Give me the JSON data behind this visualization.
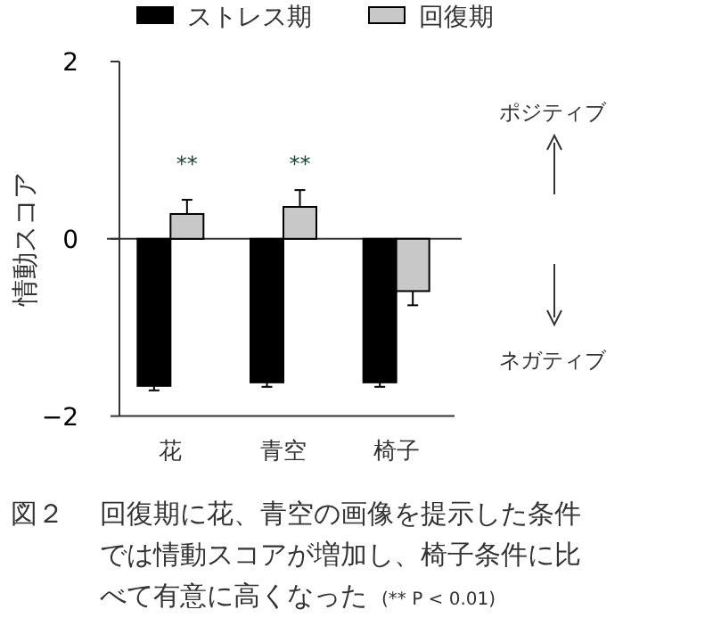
{
  "chart_data": {
    "type": "bar",
    "ylabel": "情動スコア",
    "categories": [
      "花",
      "青空",
      "椅子"
    ],
    "series": [
      {
        "name": "ストレス期",
        "color": "#000000",
        "values": [
          -1.66,
          -1.62,
          -1.62
        ],
        "errors": [
          [
            -1.71,
            -1.66
          ],
          [
            -1.67,
            -1.62
          ],
          [
            -1.67,
            -1.62
          ]
        ]
      },
      {
        "name": "回復期",
        "color": "#c8c8c8",
        "values": [
          0.28,
          0.36,
          -0.59
        ],
        "errors": [
          [
            0.28,
            0.44
          ],
          [
            0.36,
            0.55
          ],
          [
            -0.75,
            -0.59
          ]
        ]
      }
    ],
    "ylim": [
      -2,
      2
    ],
    "yticks": [
      {
        "value": -2,
        "label": "−2"
      },
      0,
      2
    ],
    "ref_lines": [
      {
        "axis": "y",
        "value": 0
      }
    ],
    "legend": "top",
    "annotations": [
      "**",
      "**",
      "ポジティブ",
      "ネガティブ",
      "図２",
      "回復期に花、青空の画像を提示した条件では情動スコアが増加し、椅子条件に比べて有意に高くなった",
      "(** P < 0.01)"
    ]
  }
}
